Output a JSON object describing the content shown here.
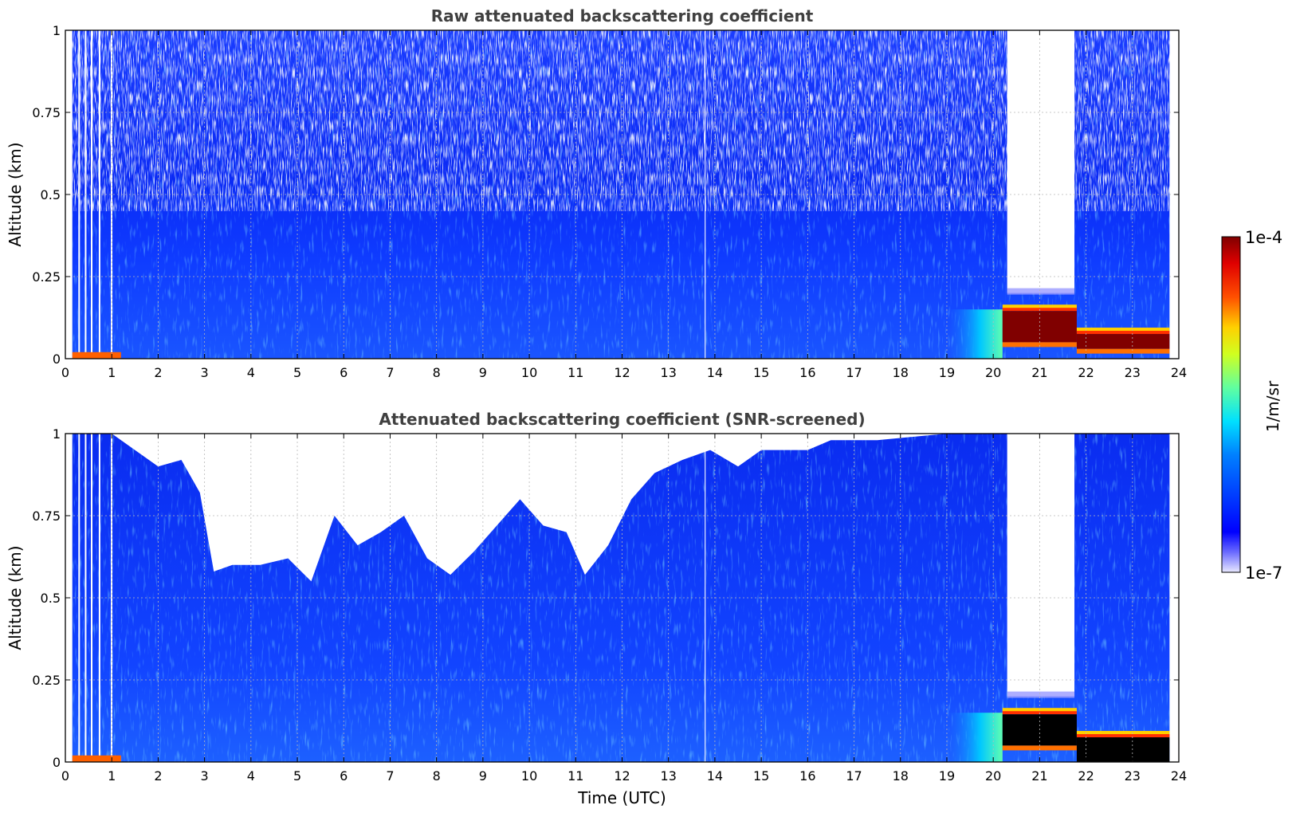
{
  "chart_data": [
    {
      "type": "heatmap",
      "title": "Raw attenuated backscattering coefficient",
      "xlabel": "",
      "ylabel": "Altitude (km)",
      "xlim": [
        0,
        24
      ],
      "ylim": [
        0,
        1
      ],
      "xticks": [
        0,
        1,
        2,
        3,
        4,
        5,
        6,
        7,
        8,
        9,
        10,
        11,
        12,
        13,
        14,
        15,
        16,
        17,
        18,
        19,
        20,
        21,
        22,
        23,
        24
      ],
      "yticks": [
        0,
        0.25,
        0.5,
        0.75,
        1
      ],
      "ytick_labels": [
        "0",
        "0.25",
        "0.5",
        "0.75",
        "1"
      ],
      "grid": true,
      "screened": false,
      "data_extent_x": [
        0.15,
        23.8
      ],
      "features": [
        {
          "kind": "near-surface layer",
          "x": [
            0.15,
            1.2
          ],
          "altitude": [
            0.0,
            0.02
          ],
          "level": "high"
        },
        {
          "kind": "aerosol layer",
          "x": [
            19.0,
            20.2
          ],
          "altitude": [
            0.0,
            0.15
          ],
          "level": "medium"
        },
        {
          "kind": "fog / low cloud",
          "x": [
            20.2,
            21.8
          ],
          "altitude": [
            0.05,
            0.15
          ],
          "level": "saturated"
        },
        {
          "kind": "fog / low cloud",
          "x": [
            21.8,
            23.8
          ],
          "altitude": [
            0.03,
            0.08
          ],
          "level": "saturated"
        },
        {
          "kind": "no signal above cloud",
          "x": [
            20.3,
            21.75
          ],
          "altitude": [
            0.2,
            1.0
          ],
          "level": "none"
        }
      ]
    },
    {
      "type": "heatmap",
      "title": "Attenuated backscattering coefficient (SNR-screened)",
      "xlabel": "Time (UTC)",
      "ylabel": "Altitude (km)",
      "xlim": [
        0,
        24
      ],
      "ylim": [
        0,
        1
      ],
      "xticks": [
        0,
        1,
        2,
        3,
        4,
        5,
        6,
        7,
        8,
        9,
        10,
        11,
        12,
        13,
        14,
        15,
        16,
        17,
        18,
        19,
        20,
        21,
        22,
        23,
        24
      ],
      "yticks": [
        0,
        0.25,
        0.5,
        0.75,
        1
      ],
      "ytick_labels": [
        "0",
        "0.25",
        "0.5",
        "0.75",
        "1"
      ],
      "grid": true,
      "screened": true,
      "data_extent_x": [
        0.15,
        23.8
      ],
      "screening_top_km": [
        [
          0.2,
          1.0
        ],
        [
          1.0,
          1.0
        ],
        [
          1.5,
          0.95
        ],
        [
          2.0,
          0.9
        ],
        [
          2.5,
          0.92
        ],
        [
          2.9,
          0.82
        ],
        [
          3.2,
          0.58
        ],
        [
          3.6,
          0.6
        ],
        [
          4.2,
          0.6
        ],
        [
          4.8,
          0.62
        ],
        [
          5.3,
          0.55
        ],
        [
          5.8,
          0.75
        ],
        [
          6.3,
          0.66
        ],
        [
          6.8,
          0.7
        ],
        [
          7.3,
          0.75
        ],
        [
          7.8,
          0.62
        ],
        [
          8.3,
          0.57
        ],
        [
          8.8,
          0.64
        ],
        [
          9.3,
          0.72
        ],
        [
          9.8,
          0.8
        ],
        [
          10.3,
          0.72
        ],
        [
          10.8,
          0.7
        ],
        [
          11.2,
          0.57
        ],
        [
          11.7,
          0.66
        ],
        [
          12.2,
          0.8
        ],
        [
          12.7,
          0.88
        ],
        [
          13.3,
          0.92
        ],
        [
          13.9,
          0.95
        ],
        [
          14.5,
          0.9
        ],
        [
          15.0,
          0.95
        ],
        [
          15.5,
          0.95
        ],
        [
          16.0,
          0.95
        ],
        [
          16.5,
          0.98
        ],
        [
          17.5,
          0.98
        ],
        [
          19.0,
          1.0
        ],
        [
          20.2,
          1.0
        ]
      ],
      "features": [
        {
          "kind": "near-surface layer",
          "x": [
            0.15,
            1.2
          ],
          "altitude": [
            0.0,
            0.02
          ],
          "level": "high"
        },
        {
          "kind": "aerosol layer",
          "x": [
            19.0,
            20.2
          ],
          "altitude": [
            0.0,
            0.15
          ],
          "level": "medium"
        },
        {
          "kind": "fog / low cloud (above colour scale)",
          "x": [
            20.2,
            21.8
          ],
          "altitude": [
            0.05,
            0.15
          ],
          "level": "above-max"
        },
        {
          "kind": "fog / low cloud (above colour scale)",
          "x": [
            21.8,
            23.8
          ],
          "altitude": [
            0.0,
            0.08
          ],
          "level": "above-max"
        },
        {
          "kind": "no signal above cloud",
          "x": [
            20.3,
            21.75
          ],
          "altitude": [
            0.2,
            1.0
          ],
          "level": "none"
        }
      ]
    }
  ],
  "colorbar": {
    "label": "1/m/sr",
    "max_label": "1e-4",
    "min_label": "1e-7",
    "colormap": "jet"
  }
}
